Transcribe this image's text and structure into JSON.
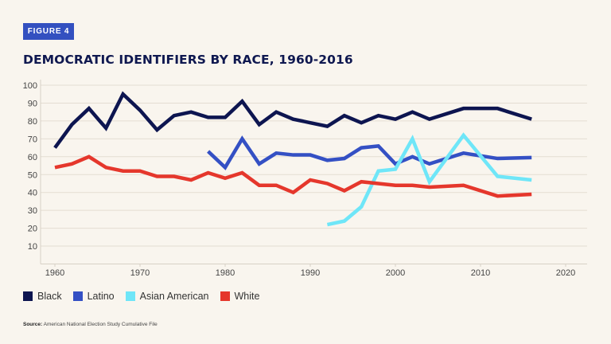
{
  "figure_label": "FIGURE 4",
  "source_label": "Source:",
  "source_text": "American National Election Study Cumulative File",
  "chart_data": {
    "type": "line",
    "title": "DEMOCRATIC IDENTIFIERS BY RACE, 1960-2016",
    "xlabel": "",
    "ylabel": "",
    "xlim": [
      1958,
      2022
    ],
    "ylim": [
      0,
      100
    ],
    "x_ticks": [
      1960,
      1970,
      1980,
      1990,
      2000,
      2010,
      2020
    ],
    "y_ticks": [
      10,
      20,
      30,
      40,
      50,
      60,
      70,
      80,
      90,
      100
    ],
    "grid": "horizontal",
    "legend_position": "bottom-left",
    "series": [
      {
        "name": "Black",
        "color": "#0d1550",
        "x": [
          1960,
          1962,
          1964,
          1966,
          1968,
          1970,
          1972,
          1974,
          1976,
          1978,
          1980,
          1982,
          1984,
          1986,
          1988,
          1990,
          1992,
          1994,
          1996,
          1998,
          2000,
          2002,
          2004,
          2008,
          2012,
          2016
        ],
        "y": [
          65,
          78,
          87,
          76,
          95,
          86,
          75,
          83,
          85,
          82,
          82,
          91,
          78,
          85,
          81,
          79,
          77,
          83,
          79,
          83,
          81,
          85,
          81,
          87,
          87,
          81
        ]
      },
      {
        "name": "Latino",
        "color": "#3450c4",
        "x": [
          1978,
          1980,
          1982,
          1984,
          1986,
          1988,
          1990,
          1992,
          1994,
          1996,
          1998,
          2000,
          2002,
          2004,
          2008,
          2012,
          2016
        ],
        "y": [
          63,
          54,
          70,
          56,
          62,
          61,
          61,
          58,
          59,
          65,
          66,
          56,
          60,
          56,
          62,
          59,
          59.5
        ]
      },
      {
        "name": "Asian American",
        "color": "#6fe6f8",
        "x": [
          1992,
          1994,
          1996,
          1998,
          2000,
          2002,
          2004,
          2008,
          2012,
          2016
        ],
        "y": [
          22,
          24,
          32,
          52,
          53,
          70,
          46,
          72,
          49,
          47
        ]
      },
      {
        "name": "White",
        "color": "#e5372c",
        "x": [
          1960,
          1962,
          1964,
          1966,
          1968,
          1970,
          1972,
          1974,
          1976,
          1978,
          1980,
          1982,
          1984,
          1986,
          1988,
          1990,
          1992,
          1994,
          1996,
          1998,
          2000,
          2002,
          2004,
          2008,
          2012,
          2016
        ],
        "y": [
          54,
          56,
          60,
          54,
          52,
          52,
          49,
          49,
          47,
          51,
          48,
          51,
          44,
          44,
          40,
          47,
          45,
          41,
          46,
          45,
          44,
          44,
          43,
          44,
          38,
          39
        ]
      }
    ]
  }
}
